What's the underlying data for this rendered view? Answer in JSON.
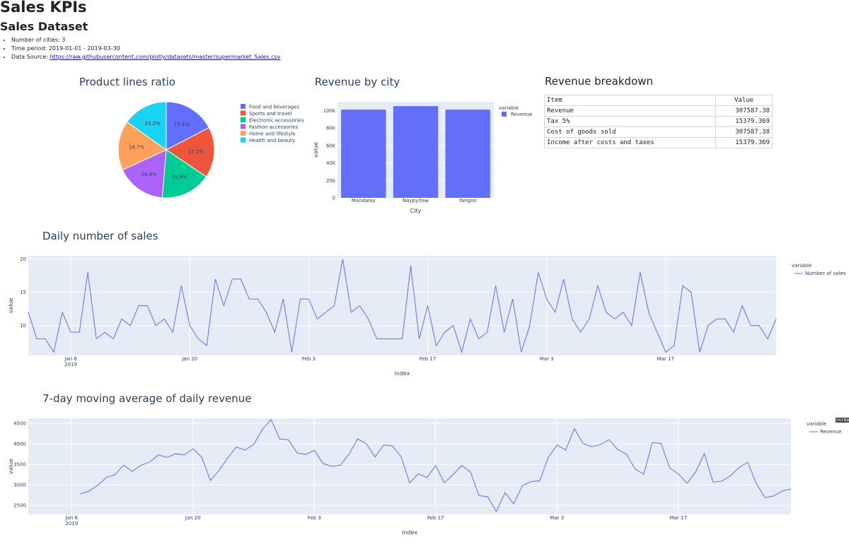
{
  "page": {
    "title": "Sales KPIs",
    "subtitle": "Sales Dataset",
    "info": [
      "Number of cities: 3",
      "Time period: 2019-01-01 - 2019-03-30"
    ],
    "source_label": "Data Source: ",
    "source_link": "https://raw.githubusercontent.com/plotly/datasets/master/supermarket_Sales.csv"
  },
  "table": {
    "title": "Revenue breakdown",
    "headers": [
      "Item",
      "Value"
    ],
    "rows": [
      [
        "Revenue",
        "307587.38"
      ],
      [
        "Tax 5%",
        "15379.369"
      ],
      [
        "Cost of goods sold",
        "307587.38"
      ],
      [
        "Income after costs and taxes",
        "15379.369"
      ]
    ]
  },
  "tooltip": "normal",
  "chart_data": [
    {
      "type": "pie",
      "title": "Product lines ratio",
      "labels": [
        "Food and beverages",
        "Sports and travel",
        "Electronic accessories",
        "Fashion accessories",
        "Home and lifestyle",
        "Health and beauty"
      ],
      "values": [
        17.4,
        17.1,
        16.9,
        16.8,
        16.7,
        15.2
      ],
      "display_labels": [
        "17.4%",
        "17.1%",
        "16.9%",
        "16.8%",
        "16.7%",
        "15.2%"
      ],
      "colors": [
        "#636efa",
        "#EF553B",
        "#00cc96",
        "#ab63fa",
        "#FFA15A",
        "#19d3f3"
      ]
    },
    {
      "type": "bar",
      "title": "Revenue by city",
      "xlabel": "City",
      "ylabel": "value",
      "categories": [
        "Mandalay",
        "Naypyitaw",
        "Yangon"
      ],
      "series": [
        {
          "name": "Revenue",
          "values": [
            101000,
            105000,
            101000
          ]
        }
      ],
      "ylim": [
        0,
        110000
      ],
      "yticks": [
        0,
        20000,
        40000,
        60000,
        80000,
        100000
      ],
      "ytick_labels": [
        "0",
        "20k",
        "40k",
        "60k",
        "80k",
        "100k"
      ],
      "legend_title": "variable",
      "color": "#636efa"
    },
    {
      "type": "line",
      "title": "Daily number of sales",
      "xlabel": "index",
      "ylabel": "value",
      "x_start": "2019-01-01",
      "xticks": [
        "Jan 6",
        "Jan 20",
        "Feb 3",
        "Feb 17",
        "Mar 3",
        "Mar 17"
      ],
      "xtick_days": [
        5,
        19,
        33,
        47,
        61,
        75
      ],
      "xtick_year": "2019",
      "ylim": [
        5.5,
        20.5
      ],
      "yticks": [
        10,
        15,
        20
      ],
      "legend_title": "variable",
      "series": [
        {
          "name": "Number of sales",
          "values": [
            12,
            8,
            8,
            6,
            12,
            9,
            9,
            18,
            8,
            9,
            8,
            11,
            10,
            13,
            13,
            10,
            11,
            9,
            16,
            10,
            8,
            7,
            17,
            13,
            17,
            17,
            14,
            14,
            12,
            9,
            14,
            6,
            14,
            14,
            11,
            12,
            13,
            20,
            12,
            13,
            11,
            8,
            8,
            8,
            8,
            19,
            8,
            13,
            7,
            9,
            10,
            6,
            11,
            8,
            9,
            16,
            9,
            14,
            6,
            10,
            18,
            14,
            12,
            17,
            11,
            9,
            11,
            16,
            12,
            11,
            12,
            10,
            18,
            12,
            9,
            6,
            7,
            16,
            15,
            6,
            10,
            11,
            11,
            9,
            13,
            10,
            10,
            8,
            11
          ]
        }
      ],
      "color": "#636efa"
    },
    {
      "type": "line",
      "title": "7-day moving average of daily revenue",
      "xlabel": "index",
      "ylabel": "value",
      "x_start": "2019-01-01",
      "xticks": [
        "Jan 6",
        "Jan 20",
        "Feb 3",
        "Feb 17",
        "Mar 3",
        "Mar 17"
      ],
      "xtick_days": [
        5,
        19,
        33,
        47,
        61,
        75
      ],
      "xtick_year": "2019",
      "ylim": [
        2280,
        4620
      ],
      "yticks": [
        2500,
        3000,
        3500,
        4000,
        4500
      ],
      "legend_title": "variable",
      "series": [
        {
          "name": "Revenue",
          "values": [
            null,
            null,
            null,
            null,
            null,
            null,
            2780,
            2850,
            2990,
            3180,
            3250,
            3480,
            3330,
            3480,
            3560,
            3730,
            3670,
            3760,
            3730,
            3880,
            3680,
            3110,
            3350,
            3660,
            3920,
            3850,
            3980,
            4350,
            4590,
            4120,
            4100,
            3780,
            3740,
            3840,
            3520,
            3450,
            3480,
            3750,
            4120,
            4000,
            3680,
            3970,
            3950,
            3690,
            3050,
            3270,
            3180,
            3470,
            3050,
            3250,
            3470,
            3320,
            2740,
            2710,
            2350,
            2810,
            2540,
            2980,
            3080,
            3100,
            3670,
            3970,
            3850,
            4370,
            4010,
            3930,
            3980,
            4100,
            3860,
            3750,
            3390,
            3260,
            4030,
            4010,
            3410,
            3270,
            3040,
            3320,
            3760,
            3070,
            3090,
            3220,
            3420,
            3550,
            3030,
            2690,
            2730,
            2850,
            2900
          ]
        }
      ],
      "color": "#636efa"
    }
  ]
}
